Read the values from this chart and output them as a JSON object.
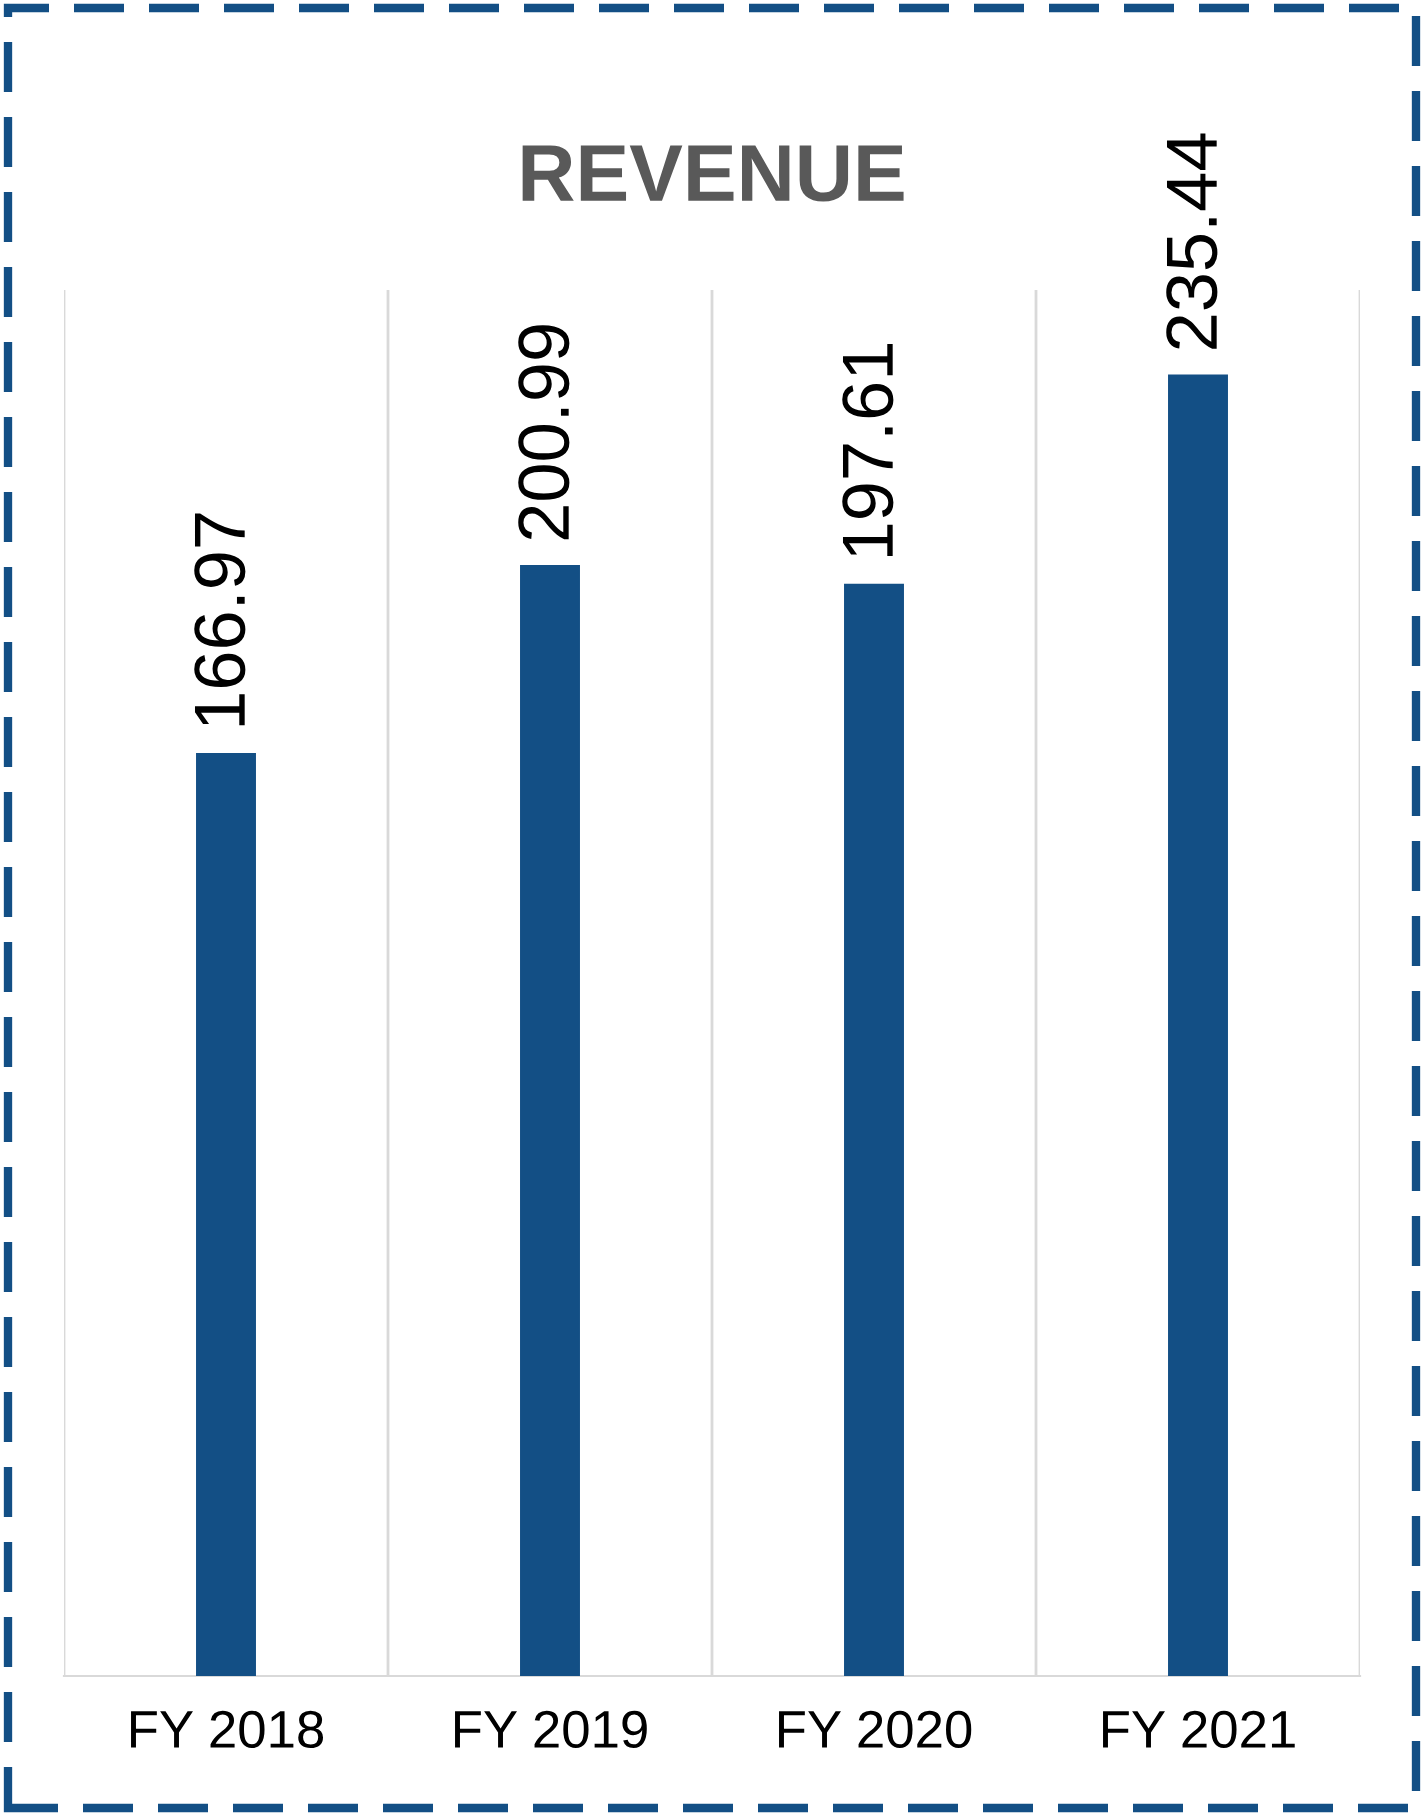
{
  "chart_data": {
    "type": "bar",
    "title": "REVENUE",
    "categories": [
      "FY 2018",
      "FY 2019",
      "FY 2020",
      "FY 2021"
    ],
    "values": [
      166.97,
      200.99,
      197.61,
      235.44
    ],
    "color": "#134f85",
    "data_labels": true,
    "grid": "x"
  }
}
